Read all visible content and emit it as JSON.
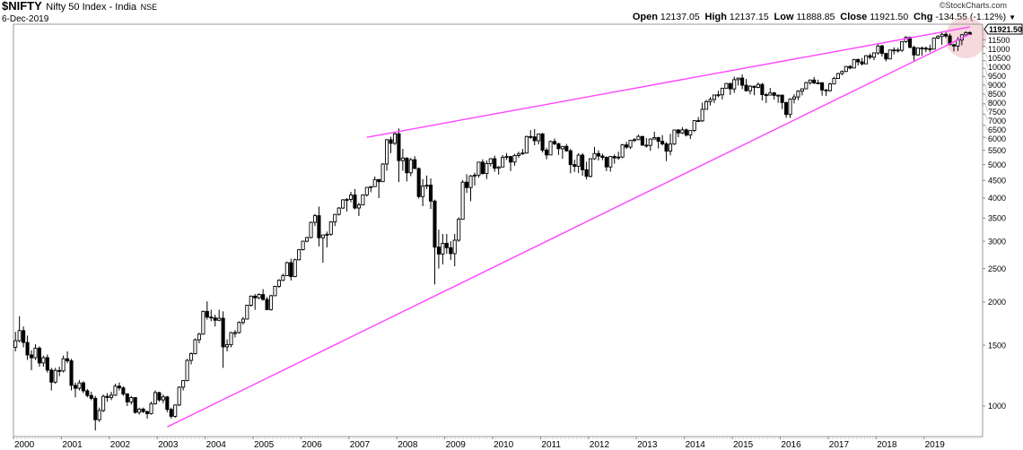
{
  "header": {
    "symbol": "$NIFTY",
    "name": "Nifty 50 Index - India",
    "exchange": "NSE",
    "date": "6-Dec-2019",
    "copyright": "©StockCharts.com",
    "open_label": "Open",
    "open": "12137.05",
    "high_label": "High",
    "high": "12137.15",
    "low_label": "Low",
    "low": "11888.85",
    "close_label": "Close",
    "close": "11921.50",
    "chg_label": "Chg",
    "chg": "-134.55 (-1.12%)"
  },
  "chart_data": {
    "type": "candlestick",
    "period": "monthly",
    "start": "2000-01",
    "y_scale": "log",
    "ylim": [
      800,
      12800
    ],
    "grid": false,
    "last_price_label": "11921.50",
    "y_ticks": [
      "1000",
      "1500",
      "2000",
      "2500",
      "3000",
      "3500",
      "4000",
      "4500",
      "5000",
      "5500",
      "6000",
      "6500",
      "7000",
      "7500",
      "8000",
      "8500",
      "9000",
      "9500",
      "10000",
      "10500",
      "11000",
      "11500"
    ],
    "x_ticks": [
      "2000",
      "2001",
      "2002",
      "2003",
      "2004",
      "2005",
      "2006",
      "2007",
      "2008",
      "2009",
      "2010",
      "2011",
      "2012",
      "2013",
      "2014",
      "2015",
      "2016",
      "2017",
      "2018",
      "2019"
    ],
    "colors": {
      "up_fill": "#ffffff",
      "down_fill": "#000000",
      "outline": "#000000",
      "trendline": "#ff44ff",
      "highlight": "#e8a0a8"
    },
    "trendlines": [
      {
        "start": [
          "2007-05",
          6000
        ],
        "end": [
          "2019-12",
          12520
        ]
      },
      {
        "start": [
          "2003-03",
          870
        ],
        "end": [
          "2019-12",
          11940
        ]
      }
    ],
    "highlight": {
      "date": "2019-11",
      "value": 11660
    },
    "candles_ohlc": [
      [
        1480,
        1640,
        1440,
        1546
      ],
      [
        1546,
        1820,
        1530,
        1654
      ],
      [
        1654,
        1700,
        1480,
        1528
      ],
      [
        1528,
        1600,
        1360,
        1406
      ],
      [
        1406,
        1450,
        1270,
        1380
      ],
      [
        1380,
        1510,
        1360,
        1471
      ],
      [
        1471,
        1490,
        1300,
        1333
      ],
      [
        1333,
        1400,
        1300,
        1381
      ],
      [
        1381,
        1410,
        1250,
        1271
      ],
      [
        1271,
        1290,
        1110,
        1173
      ],
      [
        1173,
        1290,
        1160,
        1268
      ],
      [
        1268,
        1300,
        1220,
        1264
      ],
      [
        1264,
        1400,
        1250,
        1371
      ],
      [
        1371,
        1440,
        1330,
        1352
      ],
      [
        1352,
        1370,
        1110,
        1148
      ],
      [
        1148,
        1170,
        1060,
        1126
      ],
      [
        1126,
        1190,
        1110,
        1167
      ],
      [
        1167,
        1180,
        1090,
        1107
      ],
      [
        1107,
        1120,
        1060,
        1073
      ],
      [
        1073,
        1100,
        1040,
        1053
      ],
      [
        1053,
        1070,
        850,
        913
      ],
      [
        913,
        990,
        900,
        971
      ],
      [
        971,
        1080,
        960,
        1067
      ],
      [
        1067,
        1090,
        1030,
        1059
      ],
      [
        1059,
        1100,
        1040,
        1075
      ],
      [
        1075,
        1160,
        1070,
        1142
      ],
      [
        1142,
        1170,
        1110,
        1129
      ],
      [
        1129,
        1140,
        1070,
        1084
      ],
      [
        1084,
        1090,
        1000,
        1028
      ],
      [
        1028,
        1070,
        1010,
        1058
      ],
      [
        1058,
        1060,
        950,
        959
      ],
      [
        959,
        990,
        945,
        980
      ],
      [
        980,
        990,
        955,
        964
      ],
      [
        964,
        970,
        920,
        951
      ],
      [
        951,
        1030,
        945,
        1016
      ],
      [
        1016,
        1110,
        1010,
        1094
      ],
      [
        1094,
        1100,
        1030,
        1042
      ],
      [
        1042,
        1080,
        1020,
        1063
      ],
      [
        1063,
        1070,
        960,
        978
      ],
      [
        978,
        990,
        920,
        934
      ],
      [
        934,
        1010,
        925,
        1007
      ],
      [
        1007,
        1140,
        1000,
        1134
      ],
      [
        1134,
        1190,
        1110,
        1185
      ],
      [
        1185,
        1370,
        1180,
        1356
      ],
      [
        1356,
        1430,
        1320,
        1418
      ],
      [
        1418,
        1570,
        1410,
        1556
      ],
      [
        1556,
        1630,
        1520,
        1615
      ],
      [
        1615,
        1890,
        1610,
        1880
      ],
      [
        1880,
        2010,
        1780,
        1810
      ],
      [
        1810,
        1900,
        1760,
        1800
      ],
      [
        1800,
        1840,
        1700,
        1772
      ],
      [
        1772,
        1900,
        1760,
        1796
      ],
      [
        1796,
        1880,
        1290,
        1484
      ],
      [
        1484,
        1560,
        1440,
        1505
      ],
      [
        1505,
        1640,
        1480,
        1632
      ],
      [
        1632,
        1660,
        1580,
        1632
      ],
      [
        1632,
        1760,
        1620,
        1746
      ],
      [
        1746,
        1810,
        1720,
        1786
      ],
      [
        1786,
        1960,
        1780,
        1959
      ],
      [
        1959,
        2090,
        1940,
        2081
      ],
      [
        2081,
        2110,
        1900,
        2058
      ],
      [
        2058,
        2120,
        2040,
        2103
      ],
      [
        2103,
        2180,
        2020,
        2036
      ],
      [
        2036,
        2070,
        1900,
        1902
      ],
      [
        1902,
        2100,
        1890,
        2087
      ],
      [
        2087,
        2230,
        2080,
        2221
      ],
      [
        2221,
        2330,
        2200,
        2312
      ],
      [
        2312,
        2420,
        2300,
        2385
      ],
      [
        2385,
        2620,
        2380,
        2601
      ],
      [
        2601,
        2670,
        2310,
        2371
      ],
      [
        2371,
        2670,
        2360,
        2652
      ],
      [
        2652,
        2850,
        2640,
        2837
      ],
      [
        2837,
        3010,
        2820,
        3001
      ],
      [
        3001,
        3090,
        2980,
        3075
      ],
      [
        3075,
        3420,
        3060,
        3403
      ],
      [
        3403,
        3600,
        3320,
        3558
      ],
      [
        3558,
        3780,
        2900,
        3071
      ],
      [
        3071,
        3130,
        2600,
        3128
      ],
      [
        3128,
        3200,
        2880,
        3143
      ],
      [
        3143,
        3430,
        3110,
        3414
      ],
      [
        3414,
        3600,
        3320,
        3588
      ],
      [
        3588,
        3770,
        3560,
        3744
      ],
      [
        3744,
        3970,
        3720,
        3955
      ],
      [
        3955,
        4000,
        3660,
        3966
      ],
      [
        3966,
        4170,
        3890,
        4083
      ],
      [
        4083,
        4250,
        3710,
        3745
      ],
      [
        3745,
        3880,
        3550,
        3822
      ],
      [
        3822,
        4100,
        3810,
        4088
      ],
      [
        4088,
        4300,
        4040,
        4296
      ],
      [
        4296,
        4330,
        4160,
        4318
      ],
      [
        4318,
        4620,
        4310,
        4528
      ],
      [
        4528,
        4540,
        4000,
        4464
      ],
      [
        4464,
        5050,
        4450,
        5021
      ],
      [
        5021,
        5930,
        4800,
        5901
      ],
      [
        5901,
        6020,
        5400,
        5762
      ],
      [
        5762,
        6190,
        5700,
        6139
      ],
      [
        6139,
        6360,
        4450,
        5137
      ],
      [
        5137,
        5550,
        4800,
        5224
      ],
      [
        5224,
        5250,
        4470,
        4735
      ],
      [
        4735,
        5230,
        4630,
        5166
      ],
      [
        5166,
        5290,
        4860,
        4870
      ],
      [
        4870,
        4910,
        3990,
        4040
      ],
      [
        4040,
        4540,
        3790,
        4333
      ],
      [
        4333,
        4650,
        4250,
        4360
      ],
      [
        4360,
        4560,
        3720,
        3921
      ],
      [
        3921,
        3960,
        2250,
        2885
      ],
      [
        2885,
        3240,
        2500,
        2755
      ],
      [
        2755,
        3150,
        2570,
        2959
      ],
      [
        2959,
        3150,
        2760,
        2874
      ],
      [
        2874,
        3000,
        2650,
        2763
      ],
      [
        2763,
        3150,
        2540,
        3021
      ],
      [
        3021,
        3520,
        2990,
        3474
      ],
      [
        3474,
        4510,
        3470,
        4449
      ],
      [
        4449,
        4690,
        4140,
        4291
      ],
      [
        4291,
        4670,
        3920,
        4636
      ],
      [
        4636,
        4740,
        4350,
        4662
      ],
      [
        4662,
        5090,
        4580,
        5084
      ],
      [
        5084,
        5180,
        4680,
        4712
      ],
      [
        4712,
        5140,
        4540,
        5033
      ],
      [
        5033,
        5220,
        4940,
        5201
      ],
      [
        5201,
        5310,
        4770,
        4882
      ],
      [
        4882,
        4950,
        4680,
        4922
      ],
      [
        4922,
        5330,
        4920,
        5249
      ],
      [
        5249,
        5400,
        5160,
        5278
      ],
      [
        5278,
        5300,
        4790,
        5087
      ],
      [
        5087,
        5370,
        4960,
        5313
      ],
      [
        5313,
        5450,
        5230,
        5368
      ],
      [
        5368,
        5550,
        5340,
        5402
      ],
      [
        5402,
        6070,
        5380,
        6030
      ],
      [
        6030,
        6290,
        5940,
        6018
      ],
      [
        6018,
        6340,
        5690,
        5863
      ],
      [
        5863,
        6150,
        5720,
        6135
      ],
      [
        6135,
        6180,
        5420,
        5506
      ],
      [
        5506,
        5600,
        5180,
        5333
      ],
      [
        5333,
        5870,
        5330,
        5834
      ],
      [
        5834,
        5950,
        5690,
        5749
      ],
      [
        5749,
        5780,
        5330,
        5560
      ],
      [
        5560,
        5660,
        5200,
        5647
      ],
      [
        5647,
        5740,
        5450,
        5482
      ],
      [
        5482,
        5550,
        4720,
        5001
      ],
      [
        5001,
        5170,
        4760,
        4943
      ],
      [
        4943,
        5400,
        4730,
        5327
      ],
      [
        5327,
        5400,
        4640,
        4832
      ],
      [
        4832,
        5100,
        4530,
        4624
      ],
      [
        4624,
        5220,
        4590,
        5199
      ],
      [
        5199,
        5630,
        5160,
        5385
      ],
      [
        5385,
        5500,
        5140,
        5296
      ],
      [
        5296,
        5380,
        5150,
        5248
      ],
      [
        5248,
        5280,
        4790,
        4924
      ],
      [
        4924,
        5290,
        4770,
        5279
      ],
      [
        5279,
        5350,
        5030,
        5229
      ],
      [
        5229,
        5450,
        5160,
        5259
      ],
      [
        5259,
        5740,
        5220,
        5703
      ],
      [
        5703,
        5820,
        5550,
        5620
      ],
      [
        5620,
        5890,
        5550,
        5880
      ],
      [
        5880,
        5970,
        5820,
        5905
      ],
      [
        5905,
        6110,
        5890,
        6035
      ],
      [
        6035,
        6050,
        5670,
        5693
      ],
      [
        5693,
        5970,
        5600,
        5683
      ],
      [
        5683,
        5960,
        5480,
        5930
      ],
      [
        5930,
        6230,
        5910,
        5986
      ],
      [
        5986,
        6020,
        5570,
        5842
      ],
      [
        5842,
        6090,
        5680,
        5742
      ],
      [
        5742,
        5810,
        5120,
        5471
      ],
      [
        5471,
        6140,
        5320,
        5735
      ],
      [
        5735,
        6310,
        5700,
        6299
      ],
      [
        6299,
        6340,
        6000,
        6176
      ],
      [
        6176,
        6420,
        6130,
        6304
      ],
      [
        6304,
        6360,
        6030,
        6090
      ],
      [
        6090,
        6290,
        5930,
        6277
      ],
      [
        6277,
        6730,
        6210,
        6704
      ],
      [
        6704,
        6870,
        6650,
        6696
      ],
      [
        6696,
        7560,
        6640,
        7230
      ],
      [
        7230,
        7700,
        7230,
        7611
      ],
      [
        7611,
        7840,
        7420,
        7721
      ],
      [
        7721,
        7970,
        7540,
        7954
      ],
      [
        7954,
        8180,
        7840,
        7965
      ],
      [
        7965,
        8330,
        7720,
        8322
      ],
      [
        8322,
        8620,
        8290,
        8588
      ],
      [
        8588,
        8630,
        7960,
        8283
      ],
      [
        8283,
        8990,
        8070,
        8809
      ],
      [
        8809,
        8940,
        8470,
        8902
      ],
      [
        8902,
        9120,
        8270,
        8491
      ],
      [
        8491,
        8850,
        8140,
        8182
      ],
      [
        8182,
        8490,
        7990,
        8434
      ],
      [
        8434,
        8470,
        7940,
        8369
      ],
      [
        8369,
        8650,
        8320,
        8533
      ],
      [
        8533,
        8620,
        7670,
        7971
      ],
      [
        7971,
        8060,
        7540,
        7949
      ],
      [
        7949,
        8340,
        7930,
        8066
      ],
      [
        8066,
        8120,
        7710,
        7935
      ],
      [
        7935,
        7980,
        7550,
        7946
      ],
      [
        7946,
        7970,
        7240,
        7564
      ],
      [
        7564,
        7600,
        6830,
        6987
      ],
      [
        6987,
        7780,
        6830,
        7738
      ],
      [
        7738,
        7990,
        7520,
        7850
      ],
      [
        7850,
        8210,
        7680,
        8160
      ],
      [
        8160,
        8310,
        7930,
        8288
      ],
      [
        8288,
        8680,
        8290,
        8639
      ],
      [
        8639,
        8820,
        8520,
        8786
      ],
      [
        8786,
        8970,
        8560,
        8611
      ],
      [
        8611,
        8810,
        8550,
        8626
      ],
      [
        8626,
        8670,
        7920,
        8224
      ],
      [
        8224,
        8280,
        7900,
        8186
      ],
      [
        8186,
        8630,
        8130,
        8561
      ],
      [
        8561,
        8980,
        8540,
        8880
      ],
      [
        8880,
        9220,
        8860,
        9174
      ],
      [
        9174,
        9370,
        9080,
        9304
      ],
      [
        9304,
        9650,
        9270,
        9621
      ],
      [
        9621,
        9710,
        9450,
        9521
      ],
      [
        9521,
        10120,
        9540,
        10077
      ],
      [
        10077,
        10140,
        9690,
        9918
      ],
      [
        9918,
        10180,
        9690,
        9789
      ],
      [
        9789,
        10380,
        9790,
        10335
      ],
      [
        10335,
        10490,
        10090,
        10227
      ],
      [
        10227,
        10550,
        10030,
        10531
      ],
      [
        10531,
        11170,
        10400,
        11028
      ],
      [
        11028,
        11120,
        10280,
        10493
      ],
      [
        10493,
        10530,
        9950,
        10114
      ],
      [
        10114,
        10760,
        10110,
        10739
      ],
      [
        10739,
        10930,
        10420,
        10736
      ],
      [
        10736,
        10890,
        10550,
        10714
      ],
      [
        10714,
        11370,
        10600,
        11357
      ],
      [
        11357,
        11760,
        11240,
        11681
      ],
      [
        11681,
        11750,
        10850,
        10930
      ],
      [
        10930,
        11030,
        10000,
        10387
      ],
      [
        10387,
        10920,
        10340,
        10877
      ],
      [
        10877,
        10990,
        10330,
        10863
      ],
      [
        10863,
        10990,
        10580,
        10831
      ],
      [
        10831,
        11120,
        10580,
        10793
      ],
      [
        10793,
        11630,
        10820,
        11624
      ],
      [
        11624,
        11860,
        11550,
        11748
      ],
      [
        11748,
        12040,
        11110,
        11923
      ],
      [
        11923,
        12100,
        11630,
        11789
      ],
      [
        11789,
        11980,
        11100,
        11118
      ],
      [
        11118,
        11180,
        10640,
        11023
      ],
      [
        11023,
        11700,
        10670,
        11474
      ],
      [
        11474,
        11950,
        11090,
        11877
      ],
      [
        11877,
        12160,
        11800,
        12056
      ],
      [
        12056,
        12160,
        11890,
        11922
      ]
    ]
  }
}
